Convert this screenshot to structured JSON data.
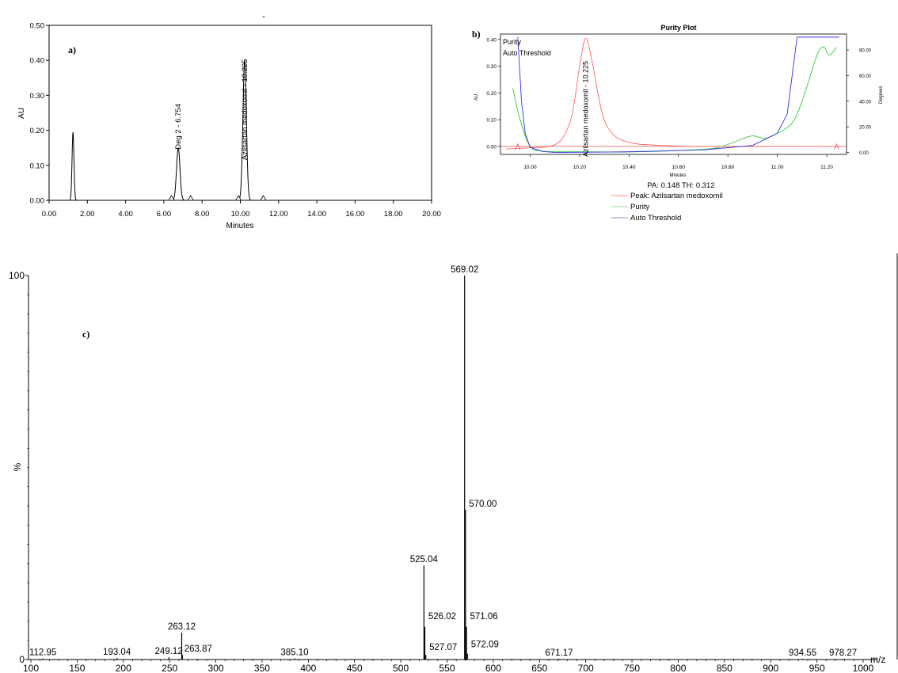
{
  "chart_data": [
    {
      "id": "a",
      "type": "line",
      "panel_label": "a)",
      "title": "-",
      "xlabel": "Minutes",
      "ylabel": "AU",
      "xlim": [
        0,
        20
      ],
      "ylim": [
        0,
        0.5
      ],
      "xticks": [
        "0.00",
        "2.00",
        "4.00",
        "6.00",
        "8.00",
        "10.00",
        "12.00",
        "14.00",
        "16.00",
        "18.00",
        "20.00"
      ],
      "yticks": [
        "0.00",
        "0.10",
        "0.20",
        "0.30",
        "0.40",
        "0.50"
      ],
      "peaks": [
        {
          "rt": 1.25,
          "height": 0.195,
          "width": 0.05
        },
        {
          "rt": 6.754,
          "height": 0.15,
          "width": 0.09
        },
        {
          "rt": 10.225,
          "height": 0.4,
          "width": 0.09
        }
      ],
      "peak_labels": [
        {
          "text": "Deg 2 - 6.754",
          "rt": 6.754
        },
        {
          "text": "Azilsartan medoxomil - 10.225",
          "rt": 10.225
        }
      ],
      "integration_markers": [
        6.4,
        7.4,
        9.9,
        11.2
      ]
    },
    {
      "id": "b",
      "type": "line",
      "panel_label": "b)",
      "title": "Purity Plot",
      "xlabel": "Minutes",
      "ylabel": "AU",
      "y2label": "Degrees",
      "xlim": [
        9.88,
        11.28
      ],
      "ylim": [
        -0.03,
        0.42
      ],
      "y2lim": [
        -1.5,
        92.4
      ],
      "xticks": [
        "10.00",
        "10.20",
        "10.40",
        "10.60",
        "10.80",
        "11.00",
        "11.20"
      ],
      "yticks": [
        "0.00",
        "0.10",
        "0.20",
        "0.30",
        "0.40"
      ],
      "y2ticks": [
        "0.00",
        "20.00",
        "40.00",
        "60.00",
        "80.00"
      ],
      "legend_top": [
        {
          "name": "Purity",
          "color": "#00cc00"
        },
        {
          "name": "Auto Threshold",
          "color": "#0000cc"
        }
      ],
      "peak_label": "Azilsartan medoxomil - 10.225",
      "pa_th_text": "PA:  0.148  TH:  0.312",
      "legend_bottom": [
        {
          "name": "Peak: Azilsartan medoxomil",
          "color": "#ff6060"
        },
        {
          "name": "Purity",
          "color": "#60d060"
        },
        {
          "name": "Auto Threshold",
          "color": "#6060d0"
        }
      ],
      "peak_series": [
        [
          9.9,
          -0.01
        ],
        [
          10.0,
          -0.005
        ],
        [
          10.08,
          0.0
        ],
        [
          10.13,
          0.03
        ],
        [
          10.17,
          0.12
        ],
        [
          10.2,
          0.3
        ],
        [
          10.225,
          0.405
        ],
        [
          10.25,
          0.32
        ],
        [
          10.29,
          0.13
        ],
        [
          10.33,
          0.05
        ],
        [
          10.4,
          0.015
        ],
        [
          10.5,
          0.005
        ],
        [
          10.7,
          0.0
        ],
        [
          11.25,
          0.0
        ]
      ],
      "purity_series": [
        [
          9.93,
          50.0
        ],
        [
          9.96,
          25.0
        ],
        [
          10.0,
          5.0
        ],
        [
          10.05,
          1.0
        ],
        [
          10.2,
          0.5
        ],
        [
          10.4,
          0.5
        ],
        [
          10.6,
          1.5
        ],
        [
          10.75,
          3.5
        ],
        [
          10.85,
          10.0
        ],
        [
          10.9,
          13.0
        ],
        [
          10.95,
          11.0
        ],
        [
          11.0,
          15.0
        ],
        [
          11.06,
          23.0
        ],
        [
          11.1,
          40.0
        ],
        [
          11.15,
          70.0
        ],
        [
          11.17,
          80.0
        ],
        [
          11.19,
          82.0
        ],
        [
          11.21,
          76.0
        ],
        [
          11.24,
          82.0
        ]
      ],
      "threshold_series": [
        [
          9.95,
          90.0
        ],
        [
          9.965,
          40.0
        ],
        [
          9.98,
          15.0
        ],
        [
          10.0,
          4.0
        ],
        [
          10.05,
          0.8
        ],
        [
          10.1,
          0.0
        ],
        [
          10.4,
          0.5
        ],
        [
          10.7,
          2.0
        ],
        [
          10.9,
          5.5
        ],
        [
          11.0,
          15.0
        ],
        [
          11.04,
          30.0
        ],
        [
          11.06,
          60.0
        ],
        [
          11.08,
          90.0
        ],
        [
          11.25,
          90.0
        ]
      ],
      "markers": [
        9.95,
        11.24
      ]
    },
    {
      "id": "c",
      "type": "bar",
      "panel_label": "c)",
      "xlabel": "m/z",
      "ylabel": "%",
      "xlim": [
        100,
        1000
      ],
      "ylim": [
        0,
        100
      ],
      "xticks": [
        "100",
        "150",
        "200",
        "250",
        "300",
        "350",
        "400",
        "450",
        "500",
        "550",
        "600",
        "650",
        "700",
        "750",
        "800",
        "850",
        "900",
        "950",
        "1000"
      ],
      "yticks": [
        "0",
        "100"
      ],
      "peaks": [
        {
          "mz": 569.02,
          "intensity": 100,
          "label": "569.02"
        },
        {
          "mz": 570.0,
          "intensity": 39,
          "label": "570.00"
        },
        {
          "mz": 525.04,
          "intensity": 24.5,
          "label": "525.04"
        },
        {
          "mz": 526.02,
          "intensity": 8.5,
          "label": "526.02"
        },
        {
          "mz": 571.06,
          "intensity": 8.5,
          "label": "571.06"
        },
        {
          "mz": 263.12,
          "intensity": 7,
          "label": "263.12"
        },
        {
          "mz": 263.87,
          "intensity": 1.2,
          "label": "263.87"
        },
        {
          "mz": 527.07,
          "intensity": 1.2,
          "label": "527.07"
        },
        {
          "mz": 572.09,
          "intensity": 1.5,
          "label": "572.09"
        },
        {
          "mz": 249.12,
          "intensity": 0.6,
          "label": "249.12"
        },
        {
          "mz": 193.04,
          "intensity": 0.4,
          "label": "193.04"
        },
        {
          "mz": 112.95,
          "intensity": 0.3,
          "label": "112.95"
        },
        {
          "mz": 385.1,
          "intensity": 0.3,
          "label": "385.10"
        },
        {
          "mz": 671.17,
          "intensity": 0.2,
          "label": "671.17"
        },
        {
          "mz": 934.55,
          "intensity": 0.2,
          "label": "934.55"
        },
        {
          "mz": 978.27,
          "intensity": 0.2,
          "label": "978.27"
        }
      ]
    }
  ]
}
